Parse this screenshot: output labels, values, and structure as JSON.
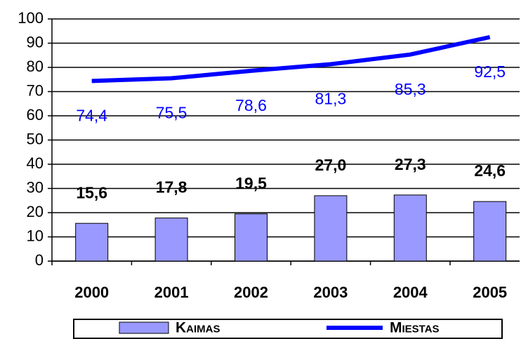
{
  "chart_data": {
    "type": "bar_line",
    "categories": [
      "2000",
      "2001",
      "2002",
      "2003",
      "2004",
      "2005"
    ],
    "series": [
      {
        "name": "Kaimas",
        "type": "bar",
        "color": "#9999ff",
        "values": [
          15.6,
          17.8,
          19.5,
          27.0,
          27.3,
          24.6
        ],
        "value_labels": [
          "15,6",
          "17,8",
          "19,5",
          "27,0",
          "27,3",
          "24,6"
        ]
      },
      {
        "name": "Miestas",
        "type": "line",
        "color": "#0000ff",
        "values": [
          74.4,
          75.5,
          78.6,
          81.3,
          85.3,
          92.5
        ],
        "value_labels": [
          "74,4",
          "75,5",
          "78,6",
          "81,3",
          "85,3",
          "92,5"
        ]
      }
    ],
    "ylim": [
      0,
      100
    ],
    "yticks": [
      0,
      10,
      20,
      30,
      40,
      50,
      60,
      70,
      80,
      90,
      100
    ],
    "grid": true,
    "legend": "bottom"
  }
}
